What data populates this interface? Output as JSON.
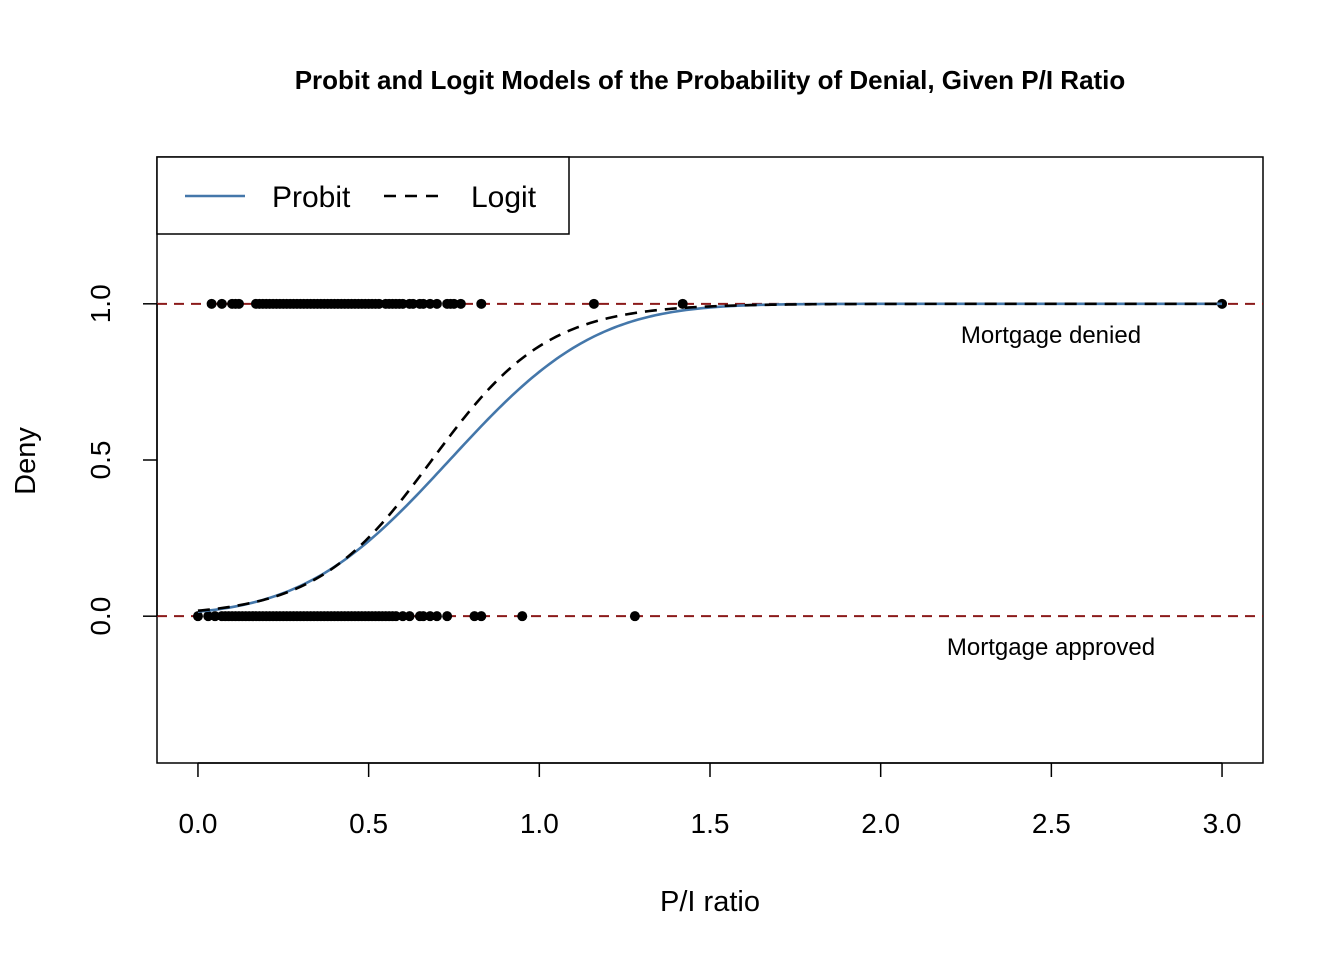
{
  "chart_data": {
    "type": "scatter",
    "title": "Probit and Logit Models of the Probability of Denial, Given P/I Ratio",
    "xlabel": "P/I ratio",
    "ylabel": "Deny",
    "xlim": [
      -0.12,
      3.12
    ],
    "ylim": [
      -0.47,
      1.47
    ],
    "xticks": [
      0.0,
      0.5,
      1.0,
      1.5,
      2.0,
      2.5,
      3.0
    ],
    "xtick_labels": [
      "0.0",
      "0.5",
      "1.0",
      "1.5",
      "2.0",
      "2.5",
      "3.0"
    ],
    "yticks": [
      0.0,
      0.5,
      1.0
    ],
    "ytick_labels": [
      "0.0",
      "0.5",
      "1.0"
    ],
    "reference_lines": [
      0,
      1
    ],
    "reference_color": "#8b1a1a",
    "legend": {
      "position": "top-left",
      "entries": [
        {
          "label": "Probit",
          "style": "solid",
          "color": "#4477aa"
        },
        {
          "label": "Logit",
          "style": "dashed",
          "color": "#000000"
        }
      ]
    },
    "annotations": [
      {
        "text": "Mortgage denied",
        "x": 2.5,
        "y": 0.9
      },
      {
        "text": "Mortgage approved",
        "x": 2.5,
        "y": -0.1
      }
    ],
    "series": [
      {
        "name": "Probit",
        "model": "probit",
        "intercept": -2.19,
        "slope": 2.97,
        "color": "#4477aa",
        "style": "solid"
      },
      {
        "name": "Logit",
        "model": "logit",
        "intercept": -4.03,
        "slope": 5.88,
        "color": "#000000",
        "style": "dashed"
      }
    ],
    "points_denied_x": [
      0.04,
      0.07,
      0.1,
      0.11,
      0.12,
      0.17,
      0.18,
      0.19,
      0.2,
      0.21,
      0.22,
      0.23,
      0.24,
      0.25,
      0.26,
      0.27,
      0.28,
      0.29,
      0.3,
      0.31,
      0.32,
      0.33,
      0.34,
      0.35,
      0.36,
      0.37,
      0.38,
      0.39,
      0.4,
      0.41,
      0.42,
      0.43,
      0.44,
      0.45,
      0.46,
      0.47,
      0.48,
      0.49,
      0.5,
      0.51,
      0.52,
      0.53,
      0.55,
      0.56,
      0.57,
      0.58,
      0.59,
      0.6,
      0.62,
      0.63,
      0.65,
      0.66,
      0.68,
      0.7,
      0.73,
      0.74,
      0.75,
      0.77,
      0.83,
      1.16,
      1.42,
      3.0
    ],
    "points_approved_x": [
      0.0,
      0.03,
      0.05,
      0.07,
      0.08,
      0.09,
      0.1,
      0.11,
      0.12,
      0.13,
      0.14,
      0.15,
      0.16,
      0.17,
      0.18,
      0.19,
      0.2,
      0.21,
      0.22,
      0.23,
      0.24,
      0.25,
      0.26,
      0.27,
      0.28,
      0.29,
      0.3,
      0.31,
      0.32,
      0.33,
      0.34,
      0.35,
      0.36,
      0.37,
      0.38,
      0.39,
      0.4,
      0.41,
      0.42,
      0.43,
      0.44,
      0.45,
      0.46,
      0.47,
      0.48,
      0.49,
      0.5,
      0.51,
      0.52,
      0.53,
      0.54,
      0.55,
      0.56,
      0.57,
      0.58,
      0.6,
      0.62,
      0.65,
      0.66,
      0.68,
      0.7,
      0.73,
      0.81,
      0.83,
      0.95,
      1.28
    ]
  }
}
